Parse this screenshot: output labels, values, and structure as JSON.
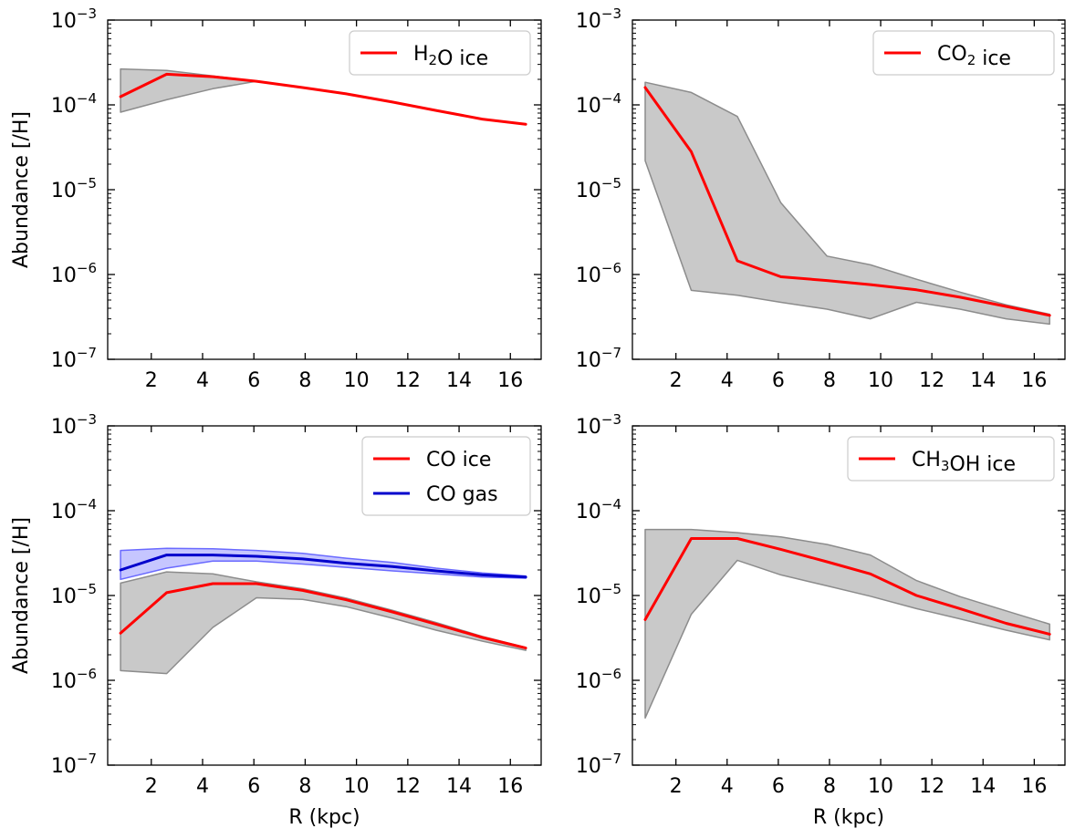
{
  "chart_data": [
    {
      "type": "line",
      "panel": "top-left",
      "xlabel": "",
      "ylabel": "Abundance [/H]",
      "yscale": "log",
      "xlim": [
        0.3,
        17.2
      ],
      "ylim": [
        1e-07,
        0.001
      ],
      "xticks": [
        2,
        4,
        6,
        8,
        10,
        12,
        14,
        16
      ],
      "yticks": [
        -7,
        -6,
        -5,
        -4,
        -3
      ],
      "legend": "top-right",
      "grid": false,
      "series": [
        {
          "name": "H₂O ice",
          "color": "#ff0000",
          "x": [
            0.8,
            2.6,
            4.4,
            6.1,
            7.9,
            9.6,
            11.4,
            13.1,
            14.9,
            16.6
          ],
          "y": [
            0.000125,
            0.00023,
            0.000215,
            0.00019,
            0.00016,
            0.000135,
            0.000108,
            8.6e-05,
            6.8e-05,
            5.9e-05
          ]
        }
      ],
      "bands": [
        {
          "color": "#c0c0c0",
          "x": [
            0.8,
            2.6,
            4.4,
            6.1,
            7.9,
            9.6,
            11.4,
            13.1,
            14.9,
            16.6
          ],
          "lower": [
            8.2e-05,
            0.000115,
            0.000155,
            0.00019,
            0.00016,
            0.000135,
            0.000108,
            8.6e-05,
            6.8e-05,
            5.9e-05
          ],
          "upper": [
            0.000265,
            0.000255,
            0.00022,
            0.00019,
            0.00016,
            0.000135,
            0.000108,
            8.6e-05,
            6.8e-05,
            5.9e-05
          ]
        }
      ]
    },
    {
      "type": "line",
      "panel": "top-right",
      "xlabel": "",
      "ylabel": "",
      "yscale": "log",
      "xlim": [
        0.3,
        17.2
      ],
      "ylim": [
        1e-07,
        0.001
      ],
      "xticks": [
        2,
        4,
        6,
        8,
        10,
        12,
        14,
        16
      ],
      "yticks": [
        -7,
        -6,
        -5,
        -4,
        -3
      ],
      "legend": "top-right",
      "grid": false,
      "series": [
        {
          "name": "CO₂ ice",
          "color": "#ff0000",
          "x": [
            0.8,
            2.6,
            4.4,
            6.1,
            7.9,
            9.6,
            11.4,
            13.1,
            14.9,
            16.6
          ],
          "y": [
            0.00016,
            2.8e-05,
            1.45e-06,
            9.4e-07,
            8.5e-07,
            7.6e-07,
            6.6e-07,
            5.4e-07,
            4.2e-07,
            3.3e-07
          ]
        }
      ],
      "bands": [
        {
          "color": "#c0c0c0",
          "x": [
            0.8,
            2.6,
            4.4,
            6.1,
            7.9,
            9.6,
            11.4,
            13.1,
            14.9,
            16.6
          ],
          "lower": [
            2.2e-05,
            6.5e-07,
            5.7e-07,
            4.7e-07,
            3.9e-07,
            3e-07,
            4.7e-07,
            3.9e-07,
            3e-07,
            2.6e-07
          ],
          "upper": [
            0.000185,
            0.00014,
            7.3e-05,
            7e-06,
            1.65e-06,
            1.3e-06,
            8.8e-07,
            6.2e-07,
            4.4e-07,
            3.4e-07
          ]
        }
      ]
    },
    {
      "type": "line",
      "panel": "bottom-left",
      "xlabel": "R (kpc)",
      "ylabel": "Abundance [/H]",
      "yscale": "log",
      "xlim": [
        0.3,
        17.2
      ],
      "ylim": [
        1e-07,
        0.001
      ],
      "xticks": [
        2,
        4,
        6,
        8,
        10,
        12,
        14,
        16
      ],
      "yticks": [
        -7,
        -6,
        -5,
        -4,
        -3
      ],
      "legend": "top-right",
      "grid": false,
      "series": [
        {
          "name": "CO ice",
          "color": "#ff0000",
          "x": [
            0.8,
            2.6,
            4.4,
            6.1,
            7.9,
            9.6,
            11.4,
            13.1,
            14.9,
            16.6
          ],
          "y": [
            3.6e-06,
            1.08e-05,
            1.38e-05,
            1.38e-05,
            1.15e-05,
            8.9e-06,
            6.4e-06,
            4.6e-06,
            3.2e-06,
            2.4e-06
          ]
        },
        {
          "name": "CO gas",
          "color": "#0000cc",
          "x": [
            0.8,
            2.6,
            4.4,
            6.1,
            7.9,
            9.6,
            11.4,
            13.1,
            14.9,
            16.6
          ],
          "y": [
            2e-05,
            3e-05,
            3e-05,
            2.9e-05,
            2.7e-05,
            2.4e-05,
            2.2e-05,
            1.95e-05,
            1.75e-05,
            1.65e-05
          ]
        }
      ],
      "bands": [
        {
          "color": "#c0c0c0",
          "x": [
            0.8,
            2.6,
            4.4,
            6.1,
            7.9,
            9.6,
            11.4,
            13.1,
            14.9,
            16.6
          ],
          "lower": [
            1.3e-06,
            1.2e-06,
            4.2e-06,
            9.4e-06,
            9e-06,
            7.4e-06,
            5.4e-06,
            3.9e-06,
            2.9e-06,
            2.25e-06
          ],
          "upper": [
            1.4e-05,
            1.9e-05,
            1.8e-05,
            1.45e-05,
            1.2e-05,
            9.3e-06,
            6.7e-06,
            4.8e-06,
            3.3e-06,
            2.45e-06
          ]
        },
        {
          "color": "#8080ff",
          "x": [
            0.8,
            2.6,
            4.4,
            6.1,
            7.9,
            9.6,
            11.4,
            13.1,
            14.9,
            16.6
          ],
          "lower": [
            1.55e-05,
            2.1e-05,
            2.55e-05,
            2.55e-05,
            2.35e-05,
            2.15e-05,
            1.95e-05,
            1.8e-05,
            1.65e-05,
            1.6e-05
          ],
          "upper": [
            3.4e-05,
            3.6e-05,
            3.55e-05,
            3.4e-05,
            3.15e-05,
            2.75e-05,
            2.45e-05,
            2.1e-05,
            1.85e-05,
            1.7e-05
          ]
        }
      ]
    },
    {
      "type": "line",
      "panel": "bottom-right",
      "xlabel": "R (kpc)",
      "ylabel": "",
      "yscale": "log",
      "xlim": [
        0.3,
        17.2
      ],
      "ylim": [
        1e-07,
        0.001
      ],
      "xticks": [
        2,
        4,
        6,
        8,
        10,
        12,
        14,
        16
      ],
      "yticks": [
        -7,
        -6,
        -5,
        -4,
        -3
      ],
      "legend": "top-right",
      "grid": false,
      "series": [
        {
          "name": "CH₃OH ice",
          "color": "#ff0000",
          "x": [
            0.8,
            2.6,
            4.4,
            6.1,
            7.9,
            9.6,
            11.4,
            13.1,
            14.9,
            16.6
          ],
          "y": [
            5.2e-06,
            4.7e-05,
            4.7e-05,
            3.5e-05,
            2.5e-05,
            1.8e-05,
            1e-05,
            7e-06,
            4.7e-06,
            3.5e-06
          ]
        }
      ],
      "bands": [
        {
          "color": "#c0c0c0",
          "x": [
            0.8,
            2.6,
            4.4,
            6.1,
            7.9,
            9.6,
            11.4,
            13.1,
            14.9,
            16.6
          ],
          "lower": [
            3.6e-07,
            6e-06,
            2.6e-05,
            1.75e-05,
            1.3e-05,
            9.8e-06,
            7e-06,
            5.3e-06,
            3.9e-06,
            3e-06
          ],
          "upper": [
            6e-05,
            6e-05,
            5.5e-05,
            4.9e-05,
            4e-05,
            3e-05,
            1.5e-05,
            9.7e-06,
            6.6e-06,
            4.6e-06
          ]
        }
      ]
    }
  ]
}
